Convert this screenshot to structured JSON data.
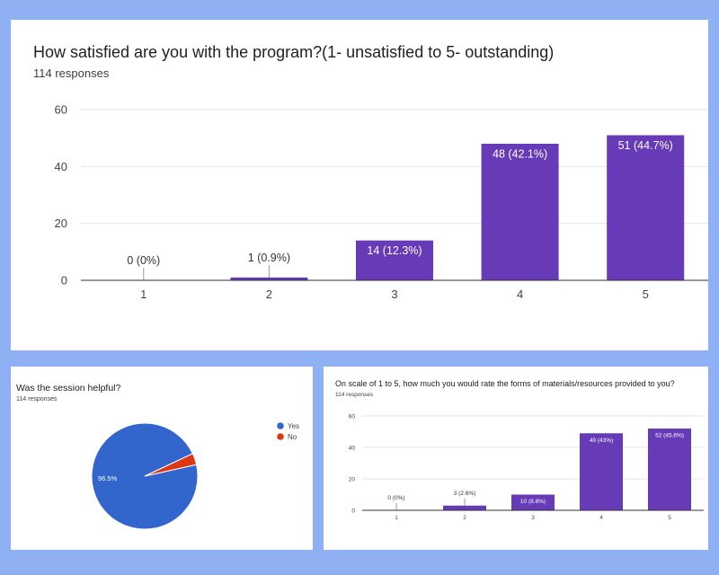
{
  "colors": {
    "page_bg": "#8fb0f3",
    "bar": "#673ab7",
    "pie_yes": "#3366cc",
    "pie_no": "#dc3912",
    "gridline": "#e6e6e6",
    "axis": "#333333"
  },
  "main_chart": {
    "title": "How satisfied are you with the program?(1- unsatisfied to 5- outstanding)",
    "responses": "114 responses"
  },
  "pie_chart": {
    "title": "Was the session helpful?",
    "responses": "114 responses"
  },
  "small_chart": {
    "title": "On scale of 1 to 5, how much you would rate the forms of materials/resources provided to you?",
    "responses": "114 responses"
  },
  "chart_data": [
    {
      "type": "bar",
      "title": "How satisfied are you with the program?(1- unsatisfied to 5- outstanding)",
      "categories": [
        "1",
        "2",
        "3",
        "4",
        "5"
      ],
      "values": [
        0,
        1,
        14,
        48,
        51
      ],
      "labels": [
        "0 (0%)",
        "1 (0.9%)",
        "14 (12.3%)",
        "48 (42.1%)",
        "51 (44.7%)"
      ],
      "yticks": [
        0,
        20,
        40,
        60
      ],
      "ylim": [
        0,
        60
      ],
      "grid": true
    },
    {
      "type": "pie",
      "title": "Was the session helpful?",
      "categories": [
        "Yes",
        "No"
      ],
      "values": [
        96.5,
        3.5
      ],
      "slice_label": "96.5%",
      "legend_position": "right"
    },
    {
      "type": "bar",
      "title": "On scale of 1 to 5, how much you would rate the forms of materials/resources provided to you?",
      "categories": [
        "1",
        "2",
        "3",
        "4",
        "5"
      ],
      "values": [
        0,
        3,
        10,
        49,
        52
      ],
      "labels": [
        "0 (0%)",
        "3 (2.6%)",
        "10 (8.8%)",
        "49 (43%)",
        "52 (45.6%)"
      ],
      "yticks": [
        0,
        20,
        40,
        60
      ],
      "ylim": [
        0,
        60
      ],
      "grid": true
    }
  ]
}
